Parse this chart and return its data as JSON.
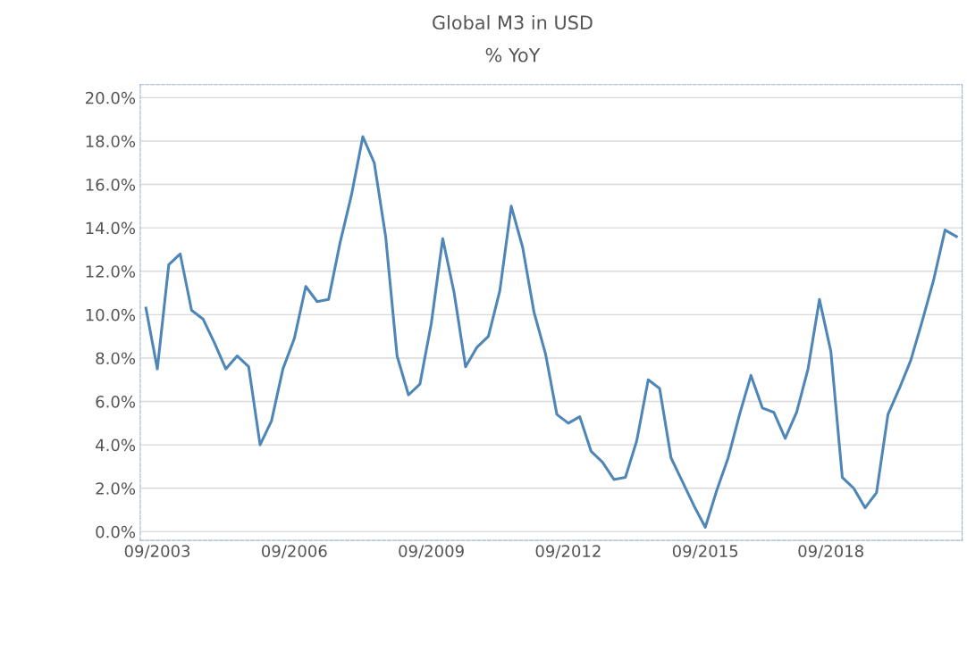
{
  "chart_data": {
    "type": "line",
    "title": "Global M3 in USD",
    "subtitle": "% YoY",
    "categories": [
      null,
      "09/2003",
      null,
      null,
      null,
      null,
      null,
      null,
      null,
      null,
      null,
      null,
      null,
      "09/2006",
      null,
      null,
      null,
      null,
      null,
      null,
      null,
      null,
      null,
      null,
      null,
      "09/2009",
      null,
      null,
      null,
      null,
      null,
      null,
      null,
      null,
      null,
      null,
      null,
      "09/2012",
      null,
      null,
      null,
      null,
      null,
      null,
      null,
      null,
      null,
      null,
      null,
      "09/2015",
      null,
      null,
      null,
      null,
      null,
      null,
      null,
      null,
      null,
      null,
      "09/2018",
      null,
      null,
      null,
      null,
      null,
      null,
      null,
      null,
      null,
      null,
      null
    ],
    "series": [
      {
        "color": "#4f86b8",
        "values": [
          10.3,
          7.5,
          12.3,
          12.8,
          10.2,
          9.8,
          8.7,
          7.5,
          8.1,
          7.6,
          4.0,
          5.1,
          7.5,
          8.9,
          11.3,
          10.6,
          10.7,
          13.3,
          15.5,
          18.2,
          17.0,
          13.6,
          8.1,
          6.3,
          6.8,
          9.6,
          13.5,
          11.0,
          7.6,
          8.5,
          9.0,
          11.1,
          15.0,
          13.1,
          10.1,
          8.2,
          5.4,
          5.0,
          5.3,
          3.7,
          3.2,
          2.4,
          2.5,
          4.2,
          7.0,
          6.6,
          3.4,
          2.3,
          1.2,
          0.2,
          1.9,
          3.4,
          5.4,
          7.2,
          5.7,
          5.5,
          4.3,
          5.5,
          7.5,
          10.7,
          8.3,
          2.5,
          2.0,
          1.1,
          1.8,
          5.4,
          6.6,
          7.9,
          9.7,
          11.6,
          13.9,
          13.6
        ]
      }
    ],
    "ylim": [
      -0.4,
      20.6
    ],
    "yticks": [
      {
        "value": 0,
        "label": "0.0%"
      },
      {
        "value": 2,
        "label": "2.0%"
      },
      {
        "value": 4,
        "label": "4.0%"
      },
      {
        "value": 6,
        "label": "6.0%"
      },
      {
        "value": 8,
        "label": "8.0%"
      },
      {
        "value": 10,
        "label": "10.0%"
      },
      {
        "value": 12,
        "label": "12.0%"
      },
      {
        "value": 14,
        "label": "14.0%"
      },
      {
        "value": 16,
        "label": "16.0%"
      },
      {
        "value": 18,
        "label": "18.0%"
      },
      {
        "value": 20,
        "label": "20.0%"
      }
    ],
    "grid": "y",
    "line_style": "solid",
    "marker": "none"
  }
}
